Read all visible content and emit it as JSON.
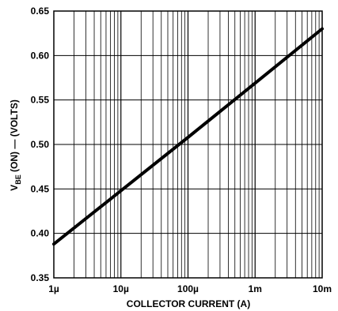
{
  "chart_data": {
    "type": "line",
    "title": "",
    "xlabel": "COLLECTOR CURRENT (A)",
    "ylabel": {
      "prefix": "V",
      "subscript": "BE",
      "suffix": " (ON) — (VOLTS)"
    },
    "xscale": "log",
    "xlim": [
      1e-06,
      0.01
    ],
    "ylim": [
      0.35,
      0.65
    ],
    "grid": true,
    "x_tick_values": [
      1e-06,
      1e-05,
      0.0001,
      0.001,
      0.01
    ],
    "x_tick_labels": [
      "1µ",
      "10µ",
      "100µ",
      "1m",
      "10m"
    ],
    "y_tick_values": [
      0.35,
      0.4,
      0.45,
      0.5,
      0.55,
      0.6,
      0.65
    ],
    "y_tick_labels": [
      "0.35",
      "0.40",
      "0.45",
      "0.50",
      "0.55",
      "0.60",
      "0.65"
    ],
    "series": [
      {
        "x": [
          1e-06,
          1e-05,
          0.0001,
          0.001,
          0.01
        ],
        "y": [
          0.388,
          0.448,
          0.508,
          0.569,
          0.63
        ]
      }
    ],
    "colors": {
      "line": "#000000",
      "grid": "#000000",
      "background": "#ffffff"
    }
  }
}
